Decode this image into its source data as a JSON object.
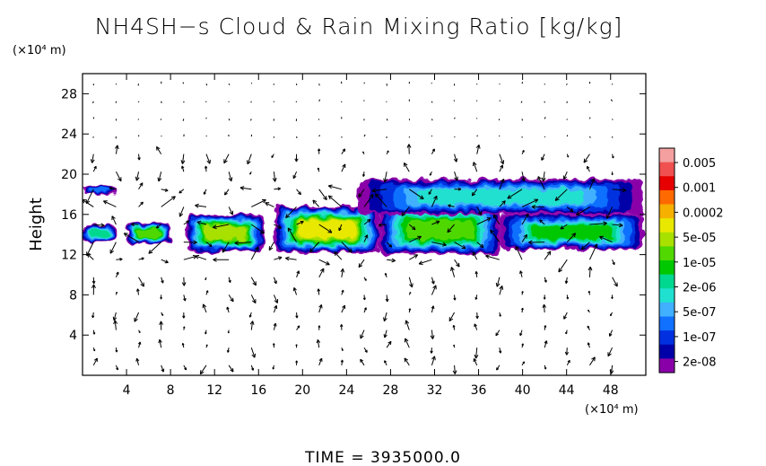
{
  "chart_data": {
    "type": "heatmap",
    "title": "NH4SH−s Cloud & Rain Mixing Ratio [kg/kg]",
    "ylabel": "Height",
    "y_unit": "(×10⁴ m)",
    "x_unit": "(×10⁴ m)",
    "xlim": [
      0,
      51.2
    ],
    "ylim": [
      0,
      30
    ],
    "x_ticks": [
      4,
      8,
      12,
      16,
      20,
      24,
      28,
      32,
      36,
      40,
      44,
      48
    ],
    "y_ticks": [
      4,
      8,
      12,
      16,
      20,
      24,
      28
    ],
    "colorbar": {
      "labels": [
        "0.005",
        "0.001",
        "0.0002",
        "5e-05",
        "1e-05",
        "2e-06",
        "5e-07",
        "1e-07",
        "2e-08"
      ],
      "colors": [
        "#f4a0a0",
        "#f05050",
        "#e60000",
        "#ff6a00",
        "#f5b000",
        "#e8e800",
        "#a8e000",
        "#50d800",
        "#00c800",
        "#00d890",
        "#20e0d0",
        "#40b0ff",
        "#1070ff",
        "#0030e0",
        "#0000a8",
        "#8a00a8"
      ]
    },
    "cloud_bands": [
      {
        "x": [
          0,
          3
        ],
        "y": [
          13.2,
          15.0
        ],
        "level": "2e-06"
      },
      {
        "x": [
          4,
          8
        ],
        "y": [
          13.0,
          15.2
        ],
        "level": "5e-05"
      },
      {
        "x": [
          9.5,
          16.5
        ],
        "y": [
          12.3,
          16.0
        ],
        "level": "0.0002"
      },
      {
        "x": [
          17.5,
          27
        ],
        "y": [
          12.2,
          16.8
        ],
        "level": "0.001"
      },
      {
        "x": [
          27,
          38
        ],
        "y": [
          12.0,
          17.0
        ],
        "level": "5e-05"
      },
      {
        "x": [
          38,
          51
        ],
        "y": [
          12.5,
          16.0
        ],
        "level": "1e-05"
      },
      {
        "x": [
          0,
          3
        ],
        "y": [
          18.0,
          19.0
        ],
        "level": "2e-08"
      },
      {
        "x": [
          25,
          51
        ],
        "y": [
          16.0,
          19.5
        ],
        "level": "5e-07"
      }
    ],
    "vector_field": "wind arrows shown across the domain"
  },
  "footer": {
    "time_label": "TIME",
    "time_sep": "=",
    "time_value": "3935000.0"
  }
}
